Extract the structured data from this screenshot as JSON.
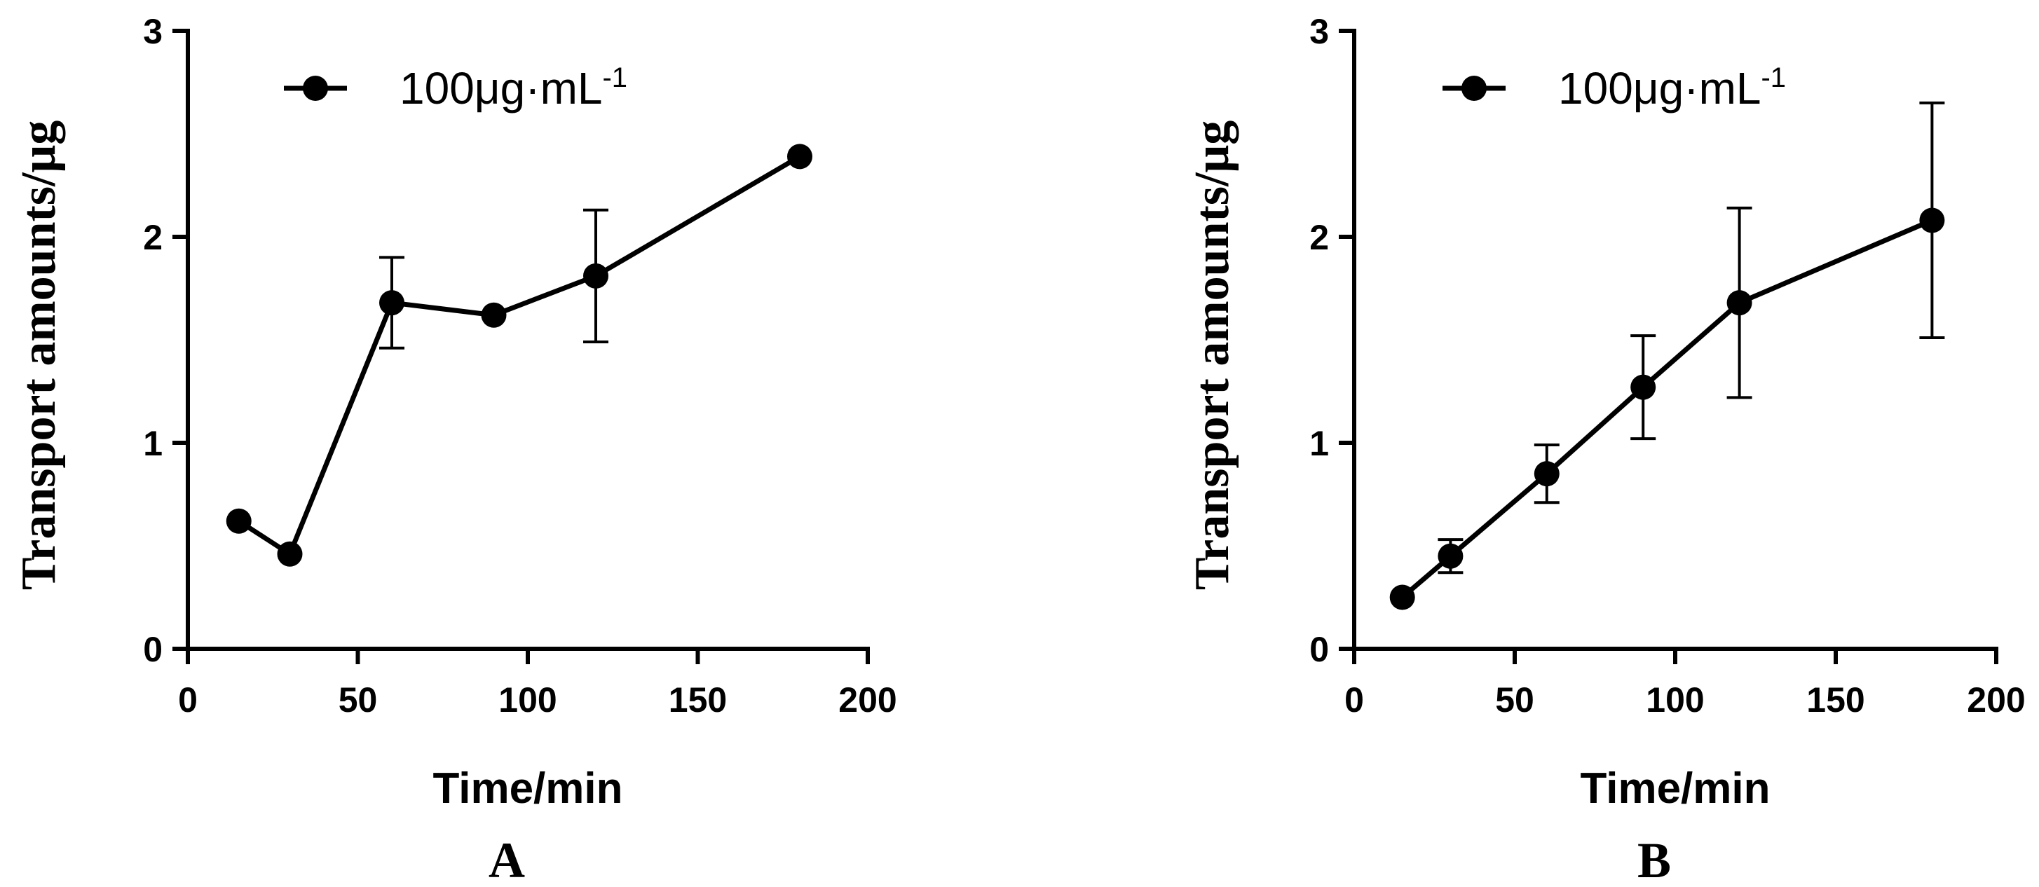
{
  "chart_data": [
    {
      "type": "line",
      "panel_label": "A",
      "xlabel": "Time/min",
      "ylabel": "Transport amounts/μg",
      "xlim": [
        0,
        200
      ],
      "ylim": [
        0,
        3
      ],
      "xticks": [
        "0",
        "50",
        "100",
        "150",
        "200"
      ],
      "yticks": [
        "0",
        "1",
        "2",
        "3"
      ],
      "grid": false,
      "legend_position": "top-left",
      "series": [
        {
          "legend_base": "100μg·mL",
          "legend_sup": "-1",
          "color": "#000000",
          "marker": "circle",
          "x": [
            15,
            30,
            60,
            90,
            120,
            180
          ],
          "y": [
            0.62,
            0.46,
            1.68,
            1.62,
            1.81,
            2.39
          ],
          "error": [
            0,
            0,
            0.22,
            0,
            0.32,
            0
          ]
        }
      ]
    },
    {
      "type": "line",
      "panel_label": "B",
      "xlabel": "Time/min",
      "ylabel": "Transport amounts/μg",
      "xlim": [
        0,
        200
      ],
      "ylim": [
        0,
        3
      ],
      "xticks": [
        "0",
        "50",
        "100",
        "150",
        "200"
      ],
      "yticks": [
        "0",
        "1",
        "2",
        "3"
      ],
      "grid": false,
      "legend_position": "top-left",
      "series": [
        {
          "legend_base": "100μg·mL",
          "legend_sup": "-1",
          "color": "#000000",
          "marker": "circle",
          "x": [
            15,
            30,
            60,
            90,
            120,
            180
          ],
          "y": [
            0.25,
            0.45,
            0.85,
            1.27,
            1.68,
            2.08
          ],
          "error": [
            0,
            0.08,
            0.14,
            0.25,
            0.46,
            0.57
          ]
        }
      ]
    }
  ]
}
